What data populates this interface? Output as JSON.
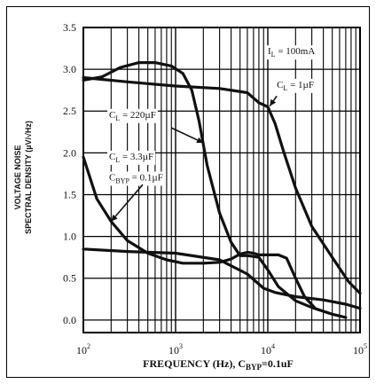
{
  "chart_data": {
    "type": "line",
    "xlabel_parts": {
      "main": "FREQUENCY (Hz), C",
      "sub": "BYP",
      "tail": "=0.1uF"
    },
    "ylabel_lines": [
      "VOLTAGE NOISE",
      "SPECTRAL DENSITY (µV/√Hz)"
    ],
    "xscale": "log",
    "xlim": [
      100,
      100000
    ],
    "ylim": [
      -0.15,
      3.5
    ],
    "grid": true,
    "x_ticks": [
      {
        "value": 100,
        "base": "10",
        "exp": "2"
      },
      {
        "value": 1000,
        "base": "10",
        "exp": "3"
      },
      {
        "value": 10000,
        "base": "10",
        "exp": "4"
      },
      {
        "value": 100000,
        "base": "10",
        "exp": "5"
      }
    ],
    "y_ticks": [
      {
        "value": 3.5,
        "label": "3.5"
      },
      {
        "value": 3.0,
        "label": "3.0"
      },
      {
        "value": 2.5,
        "label": "2.5"
      },
      {
        "value": 2.0,
        "label": "2.0"
      },
      {
        "value": 1.5,
        "label": "1.5"
      },
      {
        "value": 1.0,
        "label": "1.0"
      },
      {
        "value": 0.5,
        "label": "0.5"
      },
      {
        "value": 0.0,
        "label": "0.0"
      }
    ],
    "annotations": [
      {
        "id": "il",
        "pre": "I",
        "sub": "L",
        "post": " = 100mA",
        "x": 10000,
        "y": 3.18
      },
      {
        "id": "cl1",
        "pre": "C",
        "sub": "L",
        "post": " = 1µF",
        "x": 12500,
        "y": 2.78
      },
      {
        "id": "cl220",
        "pre": "C",
        "sub": "L",
        "post": " = 220µF",
        "x": 190,
        "y": 2.42
      },
      {
        "id": "cl33",
        "pre": "C",
        "sub": "L",
        "post": " = 3.3µF",
        "x": 190,
        "y": 1.92
      },
      {
        "id": "cbyp",
        "pre": "C",
        "sub": "BYP",
        "post": " = 0.1µF",
        "x": 190,
        "y": 1.67
      }
    ],
    "series": [
      {
        "x": [
          100,
          160,
          250,
          400,
          600,
          900,
          1200,
          1500,
          1800,
          2200,
          3000,
          4000,
          5000,
          6000,
          7000,
          8000,
          10000,
          13000,
          20000,
          30000,
          50000,
          70000
        ],
        "y": [
          2.87,
          2.91,
          3.02,
          3.08,
          3.08,
          3.04,
          2.95,
          2.75,
          2.38,
          1.85,
          1.28,
          0.93,
          0.77,
          0.77,
          0.76,
          0.75,
          0.6,
          0.4,
          0.23,
          0.15,
          0.07,
          0.03
        ]
      },
      {
        "x": [
          100,
          300,
          1000,
          3000,
          6000,
          8000,
          10000,
          12000,
          15000,
          20000,
          30000,
          50000,
          75000,
          100000
        ],
        "y": [
          2.9,
          2.85,
          2.8,
          2.77,
          2.72,
          2.6,
          2.55,
          2.35,
          2.0,
          1.58,
          1.12,
          0.75,
          0.46,
          0.32
        ]
      },
      {
        "x": [
          100,
          140,
          200,
          300,
          500,
          800,
          1200,
          2000,
          3000,
          4000,
          5000,
          6000,
          7000,
          8000,
          10000,
          13000,
          16000,
          20000,
          25000,
          32000
        ],
        "y": [
          1.95,
          1.45,
          1.18,
          0.95,
          0.8,
          0.72,
          0.68,
          0.68,
          0.69,
          0.73,
          0.79,
          0.81,
          0.8,
          0.78,
          0.78,
          0.78,
          0.74,
          0.5,
          0.28,
          0.15
        ]
      },
      {
        "x": [
          100,
          300,
          1000,
          3000,
          6000,
          9000,
          12000,
          20000,
          40000,
          70000,
          100000
        ],
        "y": [
          0.85,
          0.82,
          0.8,
          0.72,
          0.55,
          0.38,
          0.33,
          0.28,
          0.24,
          0.19,
          0.14
        ]
      }
    ]
  }
}
